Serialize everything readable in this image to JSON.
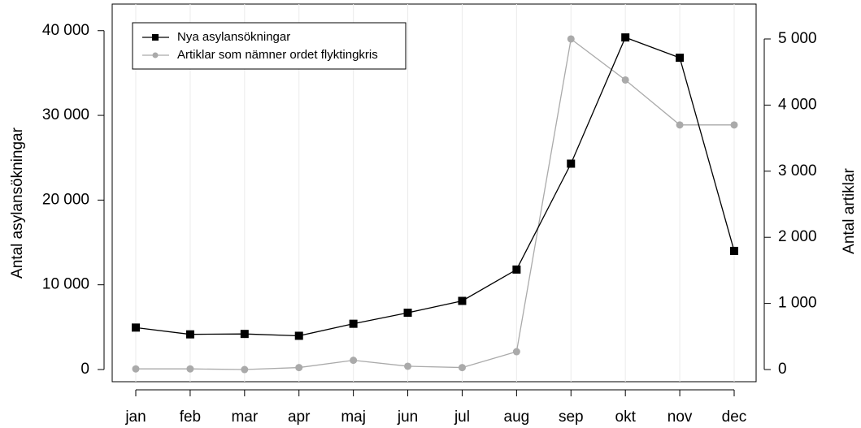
{
  "chart_data": {
    "type": "line",
    "categories": [
      "jan",
      "feb",
      "mar",
      "apr",
      "maj",
      "jun",
      "jul",
      "aug",
      "sep",
      "okt",
      "nov",
      "dec"
    ],
    "series": [
      {
        "name": "Nya asylansökningar",
        "color": "#000000",
        "marker": "square",
        "values": [
          4950,
          4150,
          4200,
          3980,
          5400,
          6700,
          8100,
          11800,
          24300,
          39200,
          36800,
          14000
        ]
      },
      {
        "name": "Artiklar som nämner ordet flyktingkris",
        "color": "#aaaaaa",
        "marker": "circle",
        "axis": "y2",
        "values": [
          10,
          10,
          0,
          30,
          140,
          50,
          30,
          270,
          5000,
          4380,
          3700,
          3700
        ]
      }
    ],
    "ylabel": "Antal asylansökningar",
    "y2label": "Antal artiklar",
    "ylim": [
      -1440,
      43140
    ],
    "yticks": [
      0,
      {
        "value": 10000,
        "label": "10 000"
      },
      {
        "value": 20000,
        "label": "20 000"
      },
      {
        "value": 30000,
        "label": "30 000"
      },
      {
        "value": 40000,
        "label": "40 000"
      }
    ],
    "y2lim": [
      -184,
      5528
    ],
    "y2ticks": [
      0,
      {
        "value": 1000,
        "label": "1 000"
      },
      {
        "value": 2000,
        "label": "2 000"
      },
      {
        "value": 3000,
        "label": "3 000"
      },
      {
        "value": 4000,
        "label": "4 000"
      },
      {
        "value": 5000,
        "label": "5 000"
      }
    ],
    "grid": true,
    "legend": "upper left"
  }
}
